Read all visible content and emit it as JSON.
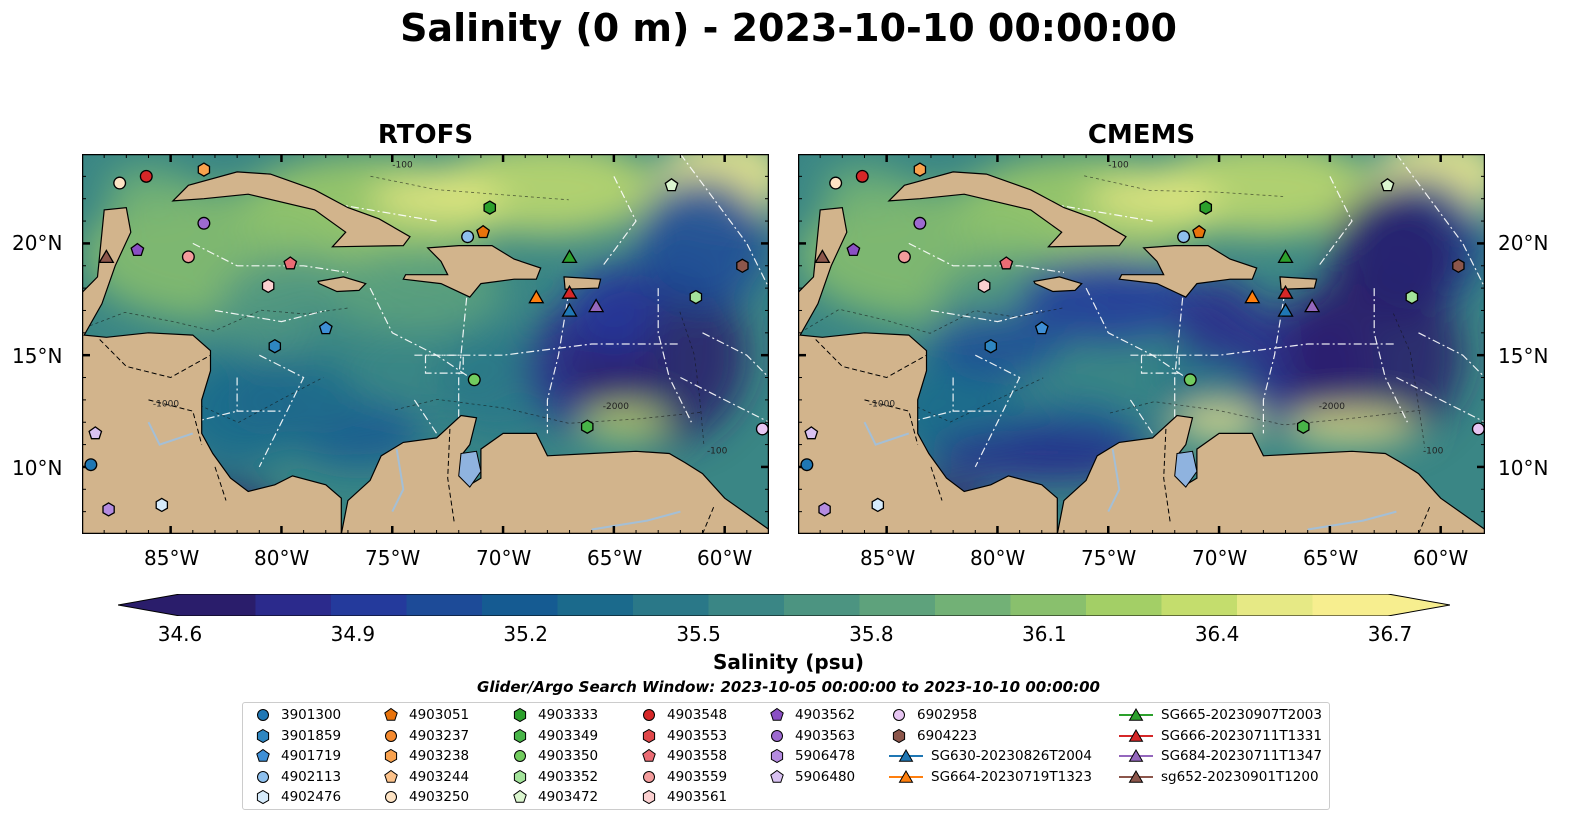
{
  "title": "Salinity (0 m) - 2023-10-10 00:00:00",
  "panels": [
    {
      "title": "RTOFS",
      "variant": "rtofs"
    },
    {
      "title": "CMEMS",
      "variant": "cmems"
    }
  ],
  "axes": {
    "lat_labels": [
      "20°N",
      "15°N",
      "10°N"
    ],
    "lon_labels": [
      "85°W",
      "80°W",
      "75°W",
      "70°W",
      "65°W",
      "60°W"
    ],
    "lon_range": [
      -89,
      -58
    ],
    "lat_range": [
      7,
      24
    ]
  },
  "contour_labels": [
    "-100",
    "-1000",
    "-2000",
    "-100"
  ],
  "colorbar": {
    "colormap": "haline",
    "ticks": [
      "34.6",
      "34.9",
      "35.2",
      "35.5",
      "35.8",
      "36.1",
      "36.4",
      "36.7"
    ],
    "range": [
      34.6,
      36.7
    ],
    "label": "Salinity (psu)",
    "colors": [
      "#2a1d6b",
      "#2b2a8c",
      "#243a9c",
      "#1d4b98",
      "#155b92",
      "#1b6a8c",
      "#2a7888",
      "#3a8685",
      "#4c9481",
      "#5ea27c",
      "#72b176",
      "#89c06d",
      "#a3cf66",
      "#c4dd6d",
      "#e6e985",
      "#f7ee8f"
    ]
  },
  "search_window": "Glider/Argo Search Window: 2023-10-05 00:00:00 to 2023-10-10 00:00:00",
  "legend": {
    "columns": [
      [
        {
          "label": "3901300",
          "marker": "circle",
          "color": "#1f77b4"
        },
        {
          "label": "3901859",
          "marker": "hexagon",
          "color": "#2e86c1"
        },
        {
          "label": "4901719",
          "marker": "pentagon",
          "color": "#3e8fd6"
        },
        {
          "label": "4902113",
          "marker": "circle",
          "color": "#8ec0ee"
        },
        {
          "label": "4902476",
          "marker": "hexagon",
          "color": "#d6ebfb"
        }
      ],
      [
        {
          "label": "4903051",
          "marker": "pentagon",
          "color": "#e8730c"
        },
        {
          "label": "4903237",
          "marker": "circle",
          "color": "#f58a2e"
        },
        {
          "label": "4903238",
          "marker": "hexagon",
          "color": "#f9a24e"
        },
        {
          "label": "4903244",
          "marker": "pentagon",
          "color": "#fcc28a"
        },
        {
          "label": "4903250",
          "marker": "circle",
          "color": "#fde3c4"
        }
      ],
      [
        {
          "label": "4903333",
          "marker": "hexagon",
          "color": "#2ca02c"
        },
        {
          "label": "4903349",
          "marker": "hexagon",
          "color": "#48b548"
        },
        {
          "label": "4903350",
          "marker": "circle",
          "color": "#72cc5f"
        },
        {
          "label": "4903352",
          "marker": "hexagon",
          "color": "#a3e39a"
        },
        {
          "label": "4903472",
          "marker": "pentagon",
          "color": "#dbf6cf"
        }
      ],
      [
        {
          "label": "4903548",
          "marker": "circle",
          "color": "#d62728"
        },
        {
          "label": "4903553",
          "marker": "hexagon",
          "color": "#e0474a"
        },
        {
          "label": "4903558",
          "marker": "pentagon",
          "color": "#eb6c74"
        },
        {
          "label": "4903559",
          "marker": "circle",
          "color": "#f39c9c"
        },
        {
          "label": "4903561",
          "marker": "hexagon",
          "color": "#fbd0d0"
        }
      ],
      [
        {
          "label": "4903562",
          "marker": "pentagon",
          "color": "#8a4fc4"
        },
        {
          "label": "4903563",
          "marker": "circle",
          "color": "#9d6ad0"
        },
        {
          "label": "5906478",
          "marker": "hexagon",
          "color": "#b48be0"
        },
        {
          "label": "5906480",
          "marker": "pentagon",
          "color": "#d9c2f2"
        }
      ],
      [
        {
          "label": "6902958",
          "marker": "circle",
          "color": "#e7c6f2"
        },
        {
          "label": "6904223",
          "marker": "hexagon",
          "color": "#8c564b"
        },
        {
          "label": "SG630-20230826T2004",
          "marker": "triangle-line",
          "color": "#1f77b4"
        },
        {
          "label": "SG664-20230719T1323",
          "marker": "triangle-line",
          "color": "#ff7f0e"
        }
      ],
      [
        {
          "label": "SG665-20230907T2003",
          "marker": "triangle-line",
          "color": "#2ca02c"
        },
        {
          "label": "SG666-20230711T1331",
          "marker": "triangle-line",
          "color": "#d62728"
        },
        {
          "label": "SG684-20230711T1347",
          "marker": "triangle-line",
          "color": "#9467bd"
        },
        {
          "label": "sg652-20230901T1200",
          "marker": "triangle-line",
          "color": "#8c564b"
        }
      ]
    ]
  },
  "map_markers": [
    {
      "label": "4903250",
      "lon": -87.3,
      "lat": 22.7,
      "marker": "circle",
      "color": "#fde3c4"
    },
    {
      "label": "4903548",
      "lon": -86.1,
      "lat": 23.0,
      "marker": "circle",
      "color": "#d62728"
    },
    {
      "label": "4903238",
      "lon": -83.5,
      "lat": 23.3,
      "marker": "hexagon",
      "color": "#f9a24e"
    },
    {
      "label": "4903563",
      "lon": -83.5,
      "lat": 20.9,
      "marker": "circle",
      "color": "#9d6ad0"
    },
    {
      "label": "sg652-20230901T1200",
      "lon": -87.9,
      "lat": 19.4,
      "marker": "triangle",
      "color": "#8c564b"
    },
    {
      "label": "4903562",
      "lon": -86.5,
      "lat": 19.7,
      "marker": "pentagon",
      "color": "#8a4fc4"
    },
    {
      "label": "4903559",
      "lon": -84.2,
      "lat": 19.4,
      "marker": "circle",
      "color": "#f39c9c"
    },
    {
      "label": "4903558",
      "lon": -79.6,
      "lat": 19.1,
      "marker": "pentagon",
      "color": "#eb6c74"
    },
    {
      "label": "4903561",
      "lon": -80.6,
      "lat": 18.1,
      "marker": "hexagon",
      "color": "#fbd0d0"
    },
    {
      "label": "4901719",
      "lon": -78.0,
      "lat": 16.2,
      "marker": "pentagon",
      "color": "#3e8fd6"
    },
    {
      "label": "3901859",
      "lon": -80.3,
      "lat": 15.4,
      "marker": "hexagon",
      "color": "#2e86c1"
    },
    {
      "label": "4902113",
      "lon": -71.6,
      "lat": 20.3,
      "marker": "circle",
      "color": "#8ec0ee"
    },
    {
      "label": "4903051",
      "lon": -70.9,
      "lat": 20.5,
      "marker": "pentagon",
      "color": "#e8730c"
    },
    {
      "label": "4903333",
      "lon": -70.6,
      "lat": 21.6,
      "marker": "hexagon",
      "color": "#2ca02c"
    },
    {
      "label": "SG665-20230907T2003",
      "lon": -67.0,
      "lat": 19.4,
      "marker": "triangle",
      "color": "#2ca02c"
    },
    {
      "label": "SG664-20230719T1323",
      "lon": -68.5,
      "lat": 17.6,
      "marker": "triangle",
      "color": "#ff7f0e"
    },
    {
      "label": "SG666-20230711T1331",
      "lon": -67.0,
      "lat": 17.8,
      "marker": "triangle",
      "color": "#d62728"
    },
    {
      "label": "SG630-20230826T2004",
      "lon": -67.0,
      "lat": 17.0,
      "marker": "triangle",
      "color": "#1f77b4"
    },
    {
      "label": "SG684-20230711T1347",
      "lon": -65.8,
      "lat": 17.2,
      "marker": "triangle",
      "color": "#9467bd"
    },
    {
      "label": "4903472",
      "lon": -62.4,
      "lat": 22.6,
      "marker": "pentagon",
      "color": "#dbf6cf"
    },
    {
      "label": "6904223",
      "lon": -59.2,
      "lat": 19.0,
      "marker": "hexagon",
      "color": "#8c564b"
    },
    {
      "label": "4903352",
      "lon": -61.3,
      "lat": 17.6,
      "marker": "hexagon",
      "color": "#a3e39a"
    },
    {
      "label": "4903350",
      "lon": -71.3,
      "lat": 13.9,
      "marker": "circle",
      "color": "#72cc5f"
    },
    {
      "label": "4903349",
      "lon": -66.2,
      "lat": 11.8,
      "marker": "hexagon",
      "color": "#48b548"
    },
    {
      "label": "6902958",
      "lon": -58.3,
      "lat": 11.7,
      "marker": "circle",
      "color": "#e7c6f2"
    },
    {
      "label": "3901300",
      "lon": -88.6,
      "lat": 10.1,
      "marker": "circle",
      "color": "#1f77b4"
    },
    {
      "label": "5906480",
      "lon": -88.4,
      "lat": 11.5,
      "marker": "pentagon",
      "color": "#d9c2f2"
    },
    {
      "label": "5906478",
      "lon": -87.8,
      "lat": 8.1,
      "marker": "hexagon",
      "color": "#b48be0"
    },
    {
      "label": "4902476",
      "lon": -85.4,
      "lat": 8.3,
      "marker": "hexagon",
      "color": "#d6ebfb"
    }
  ]
}
